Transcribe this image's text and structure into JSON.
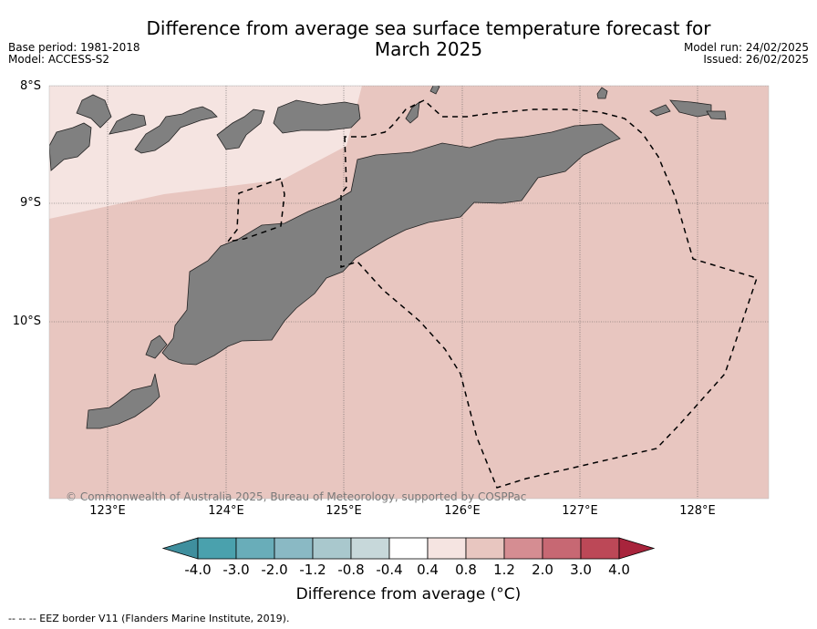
{
  "title_line1": "Difference from average sea surface temperature forecast for",
  "title_line2": "March 2025",
  "base_period": "Base period: 1981-2018",
  "model": "Model: ACCESS-S2",
  "model_run": "Model run: 24/02/2025",
  "issued": "Issued: 26/02/2025",
  "lat_labels": [
    "8°S",
    "9°S",
    "10°S"
  ],
  "lon_labels": [
    "123°E",
    "124°E",
    "125°E",
    "126°E",
    "127°E",
    "128°E"
  ],
  "copyright": "© Commonwealth of Australia 2025, Bureau of Meteorology, supported by COSPPac",
  "colorbar": {
    "ticks": [
      "-4.0",
      "-3.0",
      "-2.0",
      "-1.2",
      "-0.8",
      "-0.4",
      "0.4",
      "0.8",
      "1.2",
      "2.0",
      "3.0",
      "4.0"
    ],
    "colors": [
      "#3f8f9e",
      "#4aa1ad",
      "#69adb9",
      "#8ab9c4",
      "#a9c8cd",
      "#c7d8da",
      "#ffffff",
      "#f5e4e1",
      "#e8c6c0",
      "#d58d92",
      "#c76873",
      "#bc4857",
      "#a8243c"
    ],
    "title": "Difference from average (°C)"
  },
  "map": {
    "ocean_color": "#e8c6c0",
    "light_zone_color": "#f5e4e1",
    "land_color": "#808080"
  },
  "eez_legend": "--  --  -- EEZ border V11 (Flanders Marine Institute, 2019)."
}
